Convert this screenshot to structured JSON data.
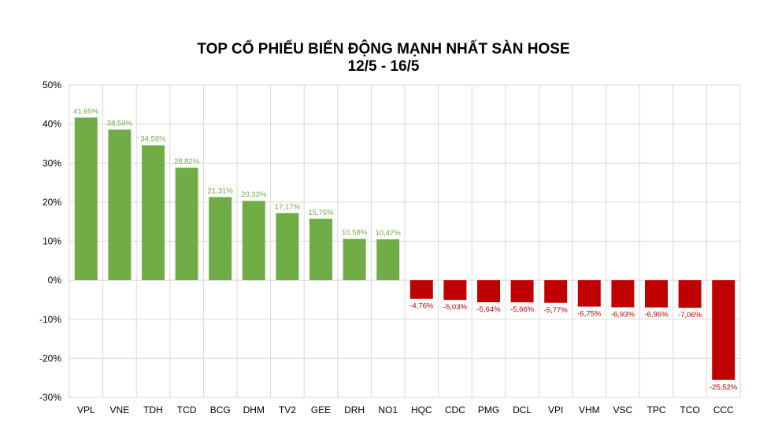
{
  "chart_data": {
    "type": "bar",
    "title": "TOP CỔ PHIẾU BIẾN ĐỘNG MẠNH NHẤT SÀN HOSE",
    "subtitle": "12/5 - 16/5",
    "categories": [
      "VPL",
      "VNE",
      "TDH",
      "TCD",
      "BCG",
      "DHM",
      "TV2",
      "GEE",
      "DRH",
      "NO1",
      "HQC",
      "CDC",
      "PMG",
      "DCL",
      "VPI",
      "VHM",
      "VSC",
      "TPC",
      "TCO",
      "CCC"
    ],
    "values": [
      41.65,
      38.59,
      34.56,
      28.82,
      21.31,
      20.33,
      17.17,
      15.76,
      10.58,
      10.47,
      -4.76,
      -5.03,
      -5.64,
      -5.66,
      -5.77,
      -6.75,
      -6.93,
      -6.96,
      -7.06,
      -25.52
    ],
    "data_labels": [
      "41,65%",
      "38,59%",
      "34,56%",
      "28,82%",
      "21,31%",
      "20,33%",
      "17,17%",
      "15,76%",
      "10,58%",
      "10,47%",
      "-4,76%",
      "-5,03%",
      "-5,64%",
      "-5,66%",
      "-5,77%",
      "-6,75%",
      "-6,93%",
      "-6,96%",
      "-7,06%",
      "-25,52%"
    ],
    "y_ticks": [
      "50%",
      "40%",
      "30%",
      "20%",
      "10%",
      "0%",
      "-10%",
      "-20%",
      "-30%"
    ],
    "ylim": [
      -30,
      50
    ],
    "grid": true,
    "colors": {
      "positive": "#70ad47",
      "negative": "#c00000",
      "grid": "#d9d9d9"
    }
  }
}
